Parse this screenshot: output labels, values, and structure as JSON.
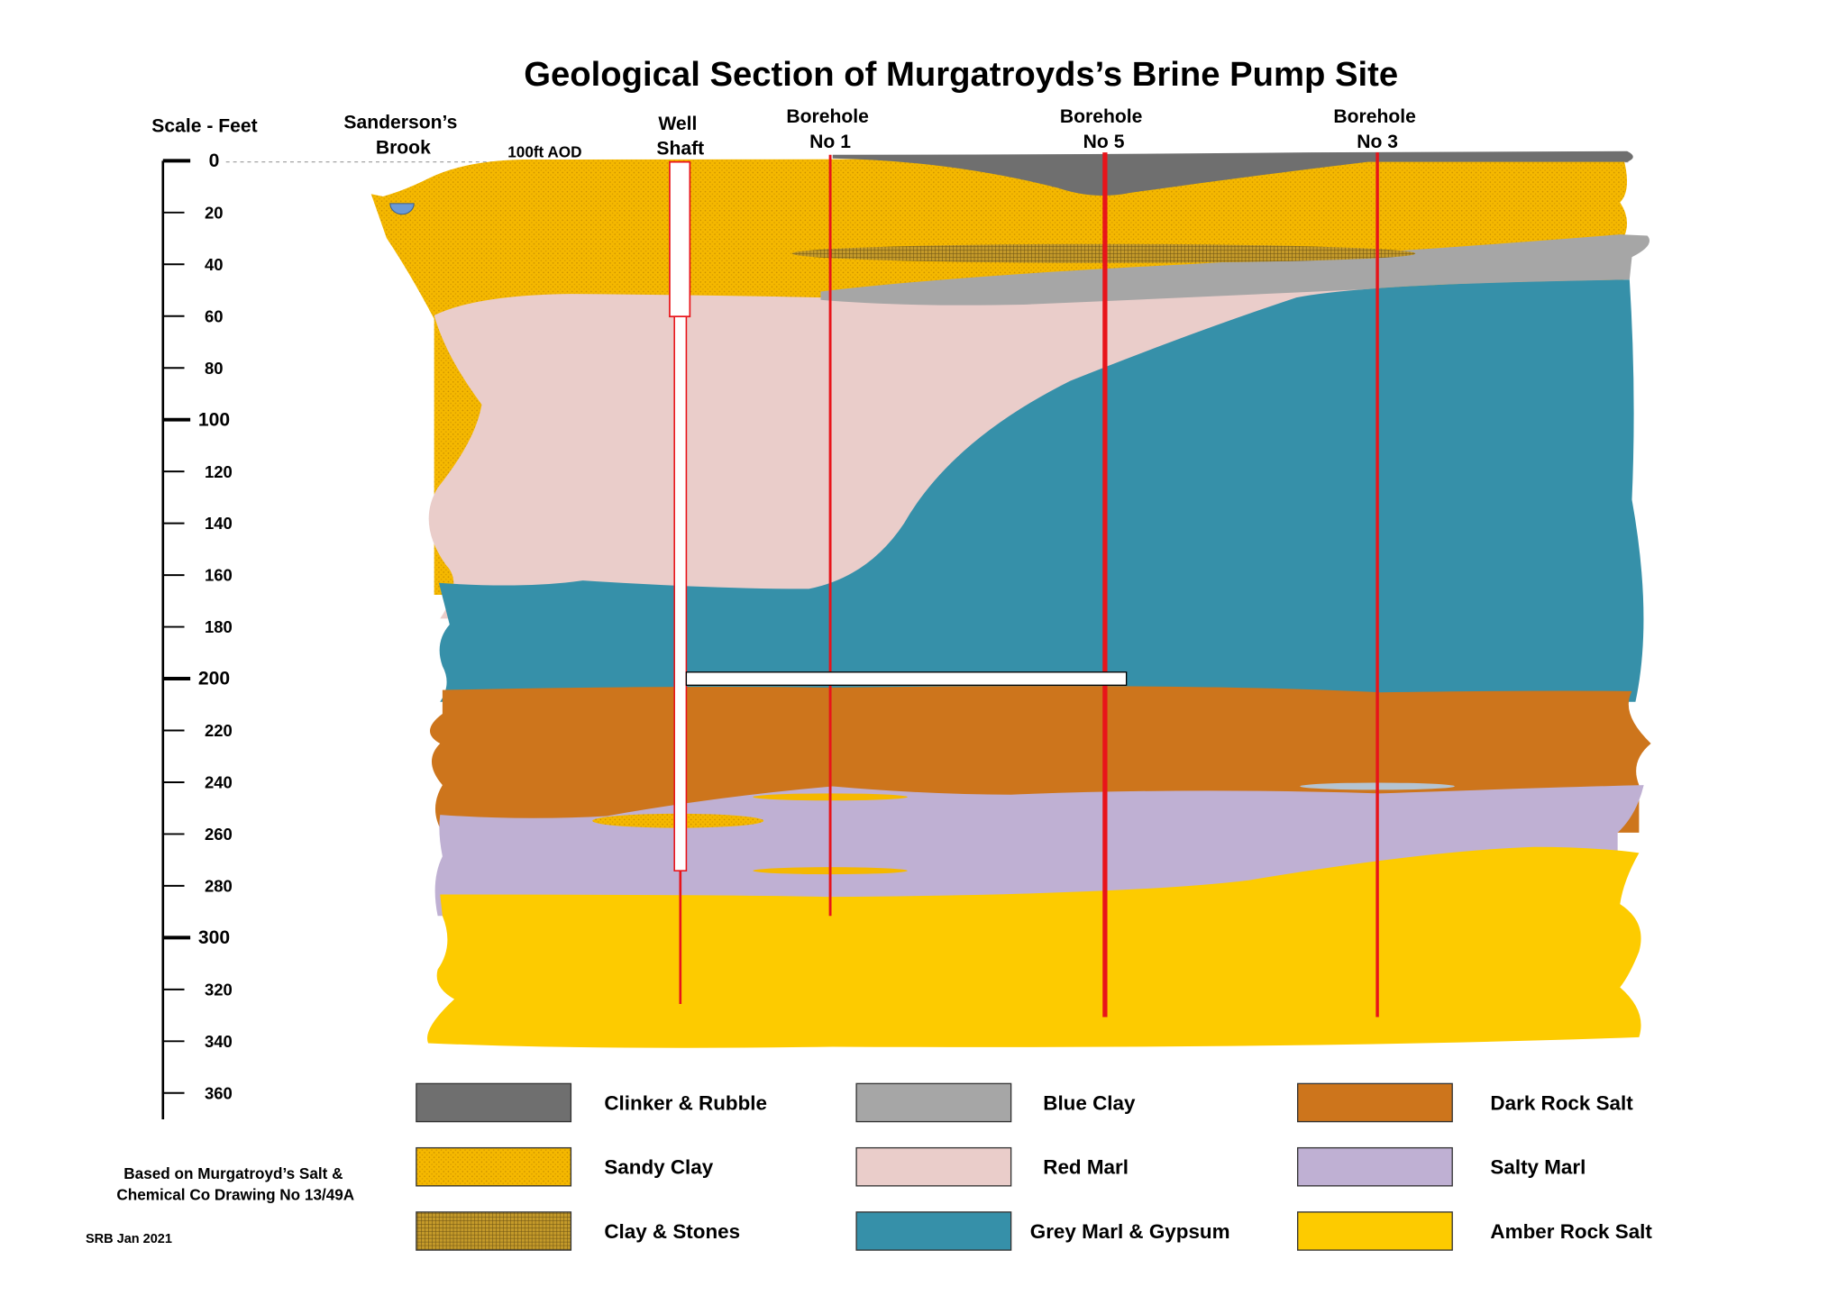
{
  "title": "Geological Section of Murgatroyds’s Brine Pump Site",
  "scale": {
    "label": "Scale - Feet",
    "ticks": [
      "0",
      "20",
      "40",
      "60",
      "80",
      "100",
      "120",
      "140",
      "160",
      "180",
      "200",
      "220",
      "240",
      "260",
      "280",
      "300",
      "320",
      "340",
      "360"
    ]
  },
  "labels": {
    "brook_line1": "Sanderson’s",
    "brook_line2": "Brook",
    "aod": "100ft AOD",
    "well_line1": "Well",
    "well_line2": "Shaft",
    "bh1_line1": "Borehole",
    "bh1_line2": "No 1",
    "bh5_line1": "Borehole",
    "bh5_line2": "No 5",
    "bh3_line1": "Borehole",
    "bh3_line2": "No 3"
  },
  "legend": [
    {
      "label": "Clinker & Rubble",
      "color": "#6f6f6f"
    },
    {
      "label": "Sandy Clay",
      "color": "#f5b800"
    },
    {
      "label": "Clay & Stones",
      "color": "#a07d1c"
    },
    {
      "label": "Blue Clay",
      "color": "#a6a6a6"
    },
    {
      "label": "Red Marl",
      "color": "#eacdca"
    },
    {
      "label": "Grey Marl & Gypsum",
      "color": "#3690a9"
    },
    {
      "label": "Dark Rock Salt",
      "color": "#cd751c"
    },
    {
      "label": "Salty Marl",
      "color": "#bfb0d3"
    },
    {
      "label": "Amber Rock Salt",
      "color": "#fdcb00"
    }
  ],
  "footer": {
    "line1": "Based on Murgatroyd’s Salt &",
    "line2": "Chemical Co Drawing No 13/49A",
    "credit": "SRB Jan 2021"
  }
}
